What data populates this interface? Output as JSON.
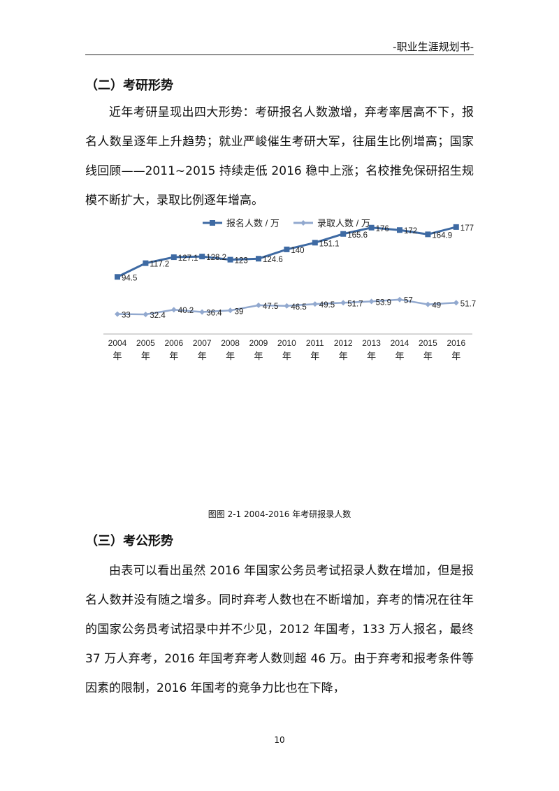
{
  "header": {
    "title": "-职业生涯规划书-"
  },
  "section2": {
    "heading": "（二）考研形势",
    "paragraph": "近年考研呈现出四大形势：考研报名人数激增，弃考率居高不下，报名人数呈逐年上升趋势；就业严峻催生考研大军，往届生比例增高；国家线回顾——2011~2015 持续走低  2016 稳中上涨；名校推免保研招生规模不断扩大，录取比例逐年增高。"
  },
  "chart_data": {
    "type": "line",
    "categories": [
      "2004\n年",
      "2005\n年",
      "2006\n年",
      "2007\n年",
      "2008\n年",
      "2009\n年",
      "2010\n年",
      "2011\n年",
      "2012\n年",
      "2013\n年",
      "2014\n年",
      "2015\n年",
      "2016\n年"
    ],
    "x_years": [
      "2004",
      "2005",
      "2006",
      "2007",
      "2008",
      "2009",
      "2010",
      "2011",
      "2012",
      "2013",
      "2014",
      "2015",
      "2016"
    ],
    "x_unit": "年",
    "series": [
      {
        "name": "报名人数 / 万",
        "color": "#3e6aa3",
        "marker": "square",
        "values": [
          94.5,
          117.2,
          127.1,
          128.2,
          123,
          124.6,
          140,
          151.1,
          165.6,
          176,
          172,
          164.9,
          177
        ]
      },
      {
        "name": "录取人数 / 万",
        "color": "#92a9cf",
        "marker": "diamond",
        "values": [
          33,
          32.4,
          40.2,
          36.4,
          39,
          47.5,
          46.5,
          49.5,
          51.7,
          53.9,
          57,
          49,
          51.7
        ]
      }
    ],
    "ylim": [
      0,
      200
    ],
    "grid": false,
    "legend": "top",
    "data_labels": true
  },
  "figure": {
    "caption": "图图 2-1    2004-2016 年考研报录人数"
  },
  "section3": {
    "heading": "（三）考公形势",
    "paragraph": "由表可以看出虽然 2016 年国家公务员考试招录人数在增加，但是报名人数并没有随之增多。同时弃考人数也在不断增加，弃考的情况在往年的国家公务员考试招录中并不少见，2012 年国考，133 万人报名，最终 37 万人弃考，2016 年国考弃考人数则超 46 万。由于弃考和报考条件等因素的限制，2016 年国考的竞争力比也在下降，"
  },
  "footer": {
    "page_number": "10"
  }
}
